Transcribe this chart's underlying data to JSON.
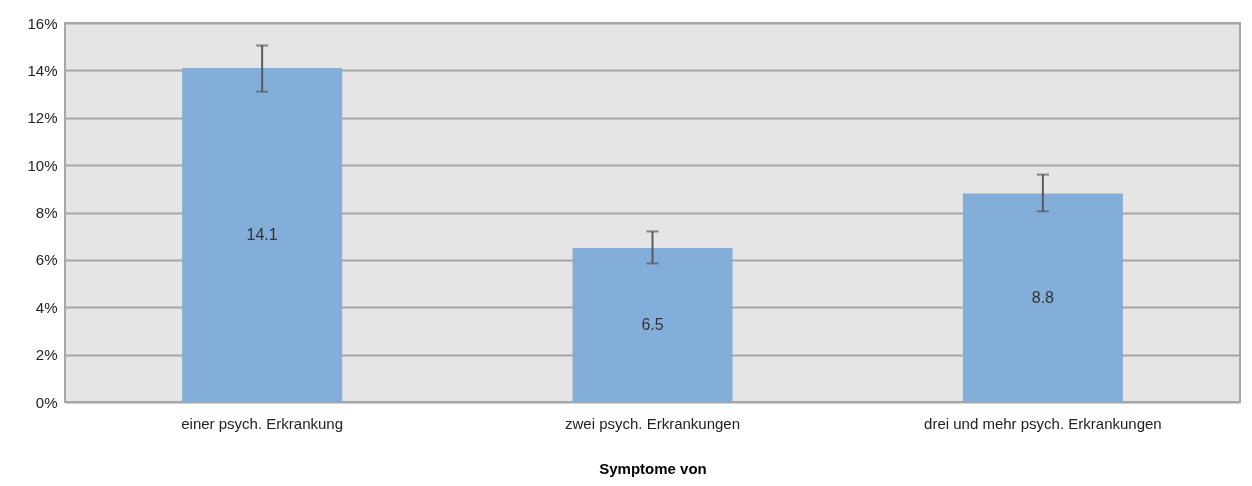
{
  "chart_data": {
    "type": "bar",
    "xlabel": "Symptome von",
    "categories": [
      "einer psych. Erkrankung",
      "zwei psych. Erkrankungen",
      "drei und mehr psych. Erkrankungen"
    ],
    "values": [
      14.1,
      6.5,
      8.8
    ],
    "color": "#83aed9",
    "errors": [
      [
        13.1,
        15.05
      ],
      [
        5.85,
        7.2
      ],
      [
        8.05,
        9.6
      ]
    ],
    "data_labels": true,
    "ylim": [
      0,
      16
    ],
    "yticks": [
      {
        "value": 0,
        "label": "0%"
      },
      {
        "value": 2,
        "label": "2%"
      },
      {
        "value": 4,
        "label": "4%"
      },
      {
        "value": 6,
        "label": "6%"
      },
      {
        "value": 8,
        "label": "8%"
      },
      {
        "value": 10,
        "label": "10%"
      },
      {
        "value": 12,
        "label": "12%"
      },
      {
        "value": 14,
        "label": "14%"
      },
      {
        "value": 16,
        "label": "16%"
      }
    ],
    "grid": "y"
  }
}
